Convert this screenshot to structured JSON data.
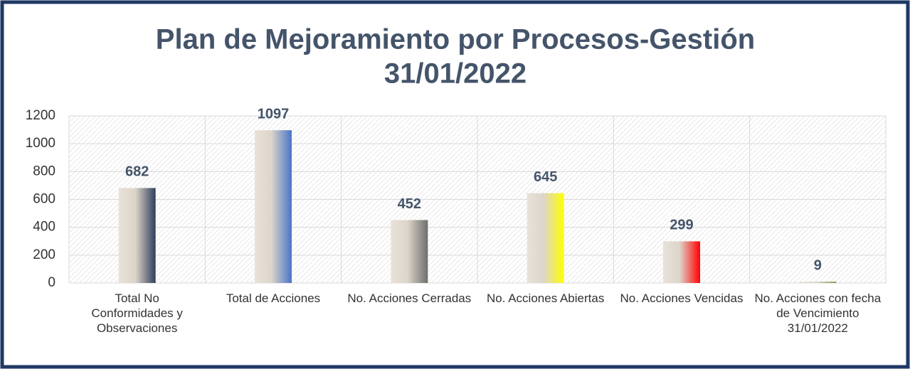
{
  "chart_data": {
    "type": "bar",
    "title": [
      "Plan de Mejoramiento por Procesos-Gestión",
      "31/01/2022"
    ],
    "categories": [
      "Total No Conformidades y Observaciones",
      "Total de Acciones",
      "No. Acciones Cerradas",
      "No. Acciones Abiertas",
      "No. Acciones Vencidas",
      "No. Acciones con fecha de Vencimiento 31/01/2022"
    ],
    "values": [
      682,
      1097,
      452,
      645,
      299,
      9
    ],
    "colors": [
      "#2f3e5a",
      "#4a74c9",
      "#6e6e6e",
      "#ffff00",
      "#ff0000",
      "#7d8c3c"
    ],
    "ylim": [
      0,
      1200
    ],
    "yticks": [
      0,
      200,
      400,
      600,
      800,
      1000,
      1200
    ],
    "grid": true
  }
}
